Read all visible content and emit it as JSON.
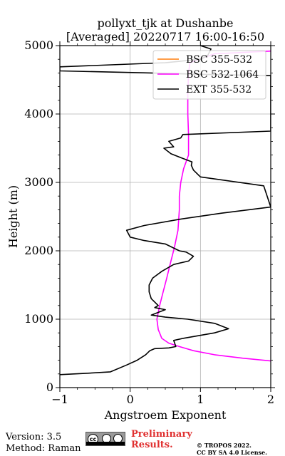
{
  "chart_data": {
    "type": "line",
    "title": "pollyxt_tjk at Dushanbe",
    "subtitle": "[Averaged] 20220717 16:00-16:50",
    "xlabel": "Angstroem Exponent",
    "ylabel": "Height (m)",
    "xlim": [
      -1,
      2
    ],
    "ylim": [
      0,
      5000
    ],
    "xticks": [
      -1,
      0,
      1,
      2
    ],
    "yticks": [
      0,
      1000,
      2000,
      3000,
      4000,
      5000
    ],
    "grid": true,
    "legend_position": "top-right",
    "series": [
      {
        "name": "BSC 355-532",
        "color": "#ff7f0e",
        "points": []
      },
      {
        "name": "BSC 532-1064",
        "color": "#ff00ff",
        "points": [
          [
            2.0,
            390
          ],
          [
            1.6,
            430
          ],
          [
            1.2,
            480
          ],
          [
            0.9,
            540
          ],
          [
            0.7,
            600
          ],
          [
            0.55,
            650
          ],
          [
            0.45,
            720
          ],
          [
            0.4,
            850
          ],
          [
            0.38,
            1000
          ],
          [
            0.42,
            1200
          ],
          [
            0.47,
            1400
          ],
          [
            0.52,
            1600
          ],
          [
            0.58,
            1850
          ],
          [
            0.63,
            2050
          ],
          [
            0.68,
            2300
          ],
          [
            0.7,
            2600
          ],
          [
            0.7,
            2800
          ],
          [
            0.72,
            3000
          ],
          [
            0.76,
            3200
          ],
          [
            0.83,
            3400
          ],
          [
            0.83,
            3700
          ],
          [
            0.82,
            4000
          ],
          [
            0.82,
            4300
          ],
          [
            0.83,
            4600
          ],
          [
            0.85,
            4750
          ],
          [
            1.2,
            4880
          ],
          [
            2.0,
            4920
          ]
        ]
      },
      {
        "name": "EXT 355-532",
        "color": "#000000",
        "points": [
          [
            -1.0,
            190
          ],
          [
            -0.6,
            210
          ],
          [
            -0.28,
            230
          ],
          [
            -0.05,
            330
          ],
          [
            0.1,
            400
          ],
          [
            0.22,
            480
          ],
          [
            0.28,
            540
          ],
          [
            0.35,
            570
          ],
          [
            0.55,
            580
          ],
          [
            0.65,
            600
          ],
          [
            0.62,
            690
          ],
          [
            0.75,
            720
          ],
          [
            1.2,
            800
          ],
          [
            1.4,
            860
          ],
          [
            1.2,
            940
          ],
          [
            0.82,
            1000
          ],
          [
            0.5,
            1030
          ],
          [
            0.3,
            1060
          ],
          [
            0.45,
            1120
          ],
          [
            0.5,
            1140
          ],
          [
            0.35,
            1170
          ],
          [
            0.4,
            1200
          ],
          [
            0.3,
            1300
          ],
          [
            0.27,
            1400
          ],
          [
            0.27,
            1500
          ],
          [
            0.32,
            1600
          ],
          [
            0.45,
            1700
          ],
          [
            0.62,
            1800
          ],
          [
            0.83,
            1850
          ],
          [
            0.9,
            1920
          ],
          [
            0.8,
            1980
          ],
          [
            0.7,
            2000
          ],
          [
            0.5,
            2100
          ],
          [
            0.2,
            2150
          ],
          [
            0.0,
            2200
          ],
          [
            -0.05,
            2300
          ],
          [
            0.2,
            2370
          ],
          [
            0.7,
            2460
          ],
          [
            1.3,
            2550
          ],
          [
            2.0,
            2640
          ],
          [
            1.9,
            2950
          ],
          [
            1.0,
            3080
          ],
          [
            0.9,
            3180
          ],
          [
            0.87,
            3250
          ],
          [
            0.88,
            3300
          ],
          [
            0.75,
            3350
          ],
          [
            0.58,
            3420
          ],
          [
            0.48,
            3500
          ],
          [
            0.62,
            3520
          ],
          [
            0.55,
            3600
          ],
          [
            0.72,
            3650
          ],
          [
            0.75,
            3700
          ],
          [
            2.0,
            3750
          ],
          [
            2.0,
            4560
          ],
          [
            1.0,
            4580
          ],
          [
            0.3,
            4600
          ],
          [
            -1.0,
            4630
          ],
          [
            -1.0,
            4690
          ],
          [
            0.5,
            4750
          ],
          [
            1.0,
            4800
          ],
          [
            1.1,
            4850
          ],
          [
            1.15,
            4950
          ],
          [
            1.0,
            5000
          ]
        ]
      }
    ]
  },
  "footer": {
    "version": "Version: 3.5",
    "method": "Method: Raman",
    "license_badge": "cc-by-sa-icon",
    "preliminary_line1": "Preliminary",
    "preliminary_line2": "Results.",
    "copyright_line1": "© TROPOS 2022.",
    "copyright_line2": "CC BY SA 4.0 License."
  }
}
